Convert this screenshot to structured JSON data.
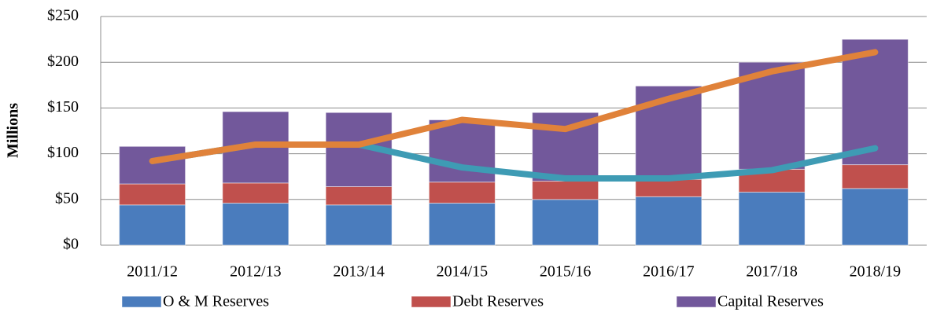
{
  "chart_data": {
    "type": "bar",
    "stacked": true,
    "y_label": "Millions",
    "categories": [
      "2011/12",
      "2012/13",
      "2013/14",
      "2014/15",
      "2015/16",
      "2016/17",
      "2017/18",
      "2018/19"
    ],
    "series": [
      {
        "name": "O & M Reserves",
        "color": "#4a7cbd",
        "values": [
          44,
          46,
          44,
          46,
          50,
          53,
          58,
          62
        ]
      },
      {
        "name": "Debt Reserves",
        "color": "#c0504d",
        "values": [
          23,
          22,
          20,
          23,
          20,
          19,
          25,
          26
        ]
      },
      {
        "name": "Capital Reserves",
        "color": "#72589b",
        "values": [
          41,
          78,
          81,
          68,
          75,
          102,
          117,
          137
        ]
      },
      {
        "type": "line",
        "color": "#3e9bb4",
        "values": [
          92,
          110,
          110,
          85,
          73,
          73,
          82,
          106
        ]
      },
      {
        "type": "line",
        "color": "#e0823a",
        "values": [
          92,
          110,
          110,
          137,
          127,
          160,
          190,
          211
        ]
      }
    ],
    "ylim": [
      0,
      250
    ],
    "yticks": [
      {
        "value": 0,
        "label": "$0"
      },
      {
        "value": 50,
        "label": "$50"
      },
      {
        "value": 100,
        "label": "$100"
      },
      {
        "value": 150,
        "label": "$150"
      },
      {
        "value": 200,
        "label": "$200"
      },
      {
        "value": 250,
        "label": "$250"
      }
    ],
    "grid": true,
    "legend": "bottom"
  }
}
